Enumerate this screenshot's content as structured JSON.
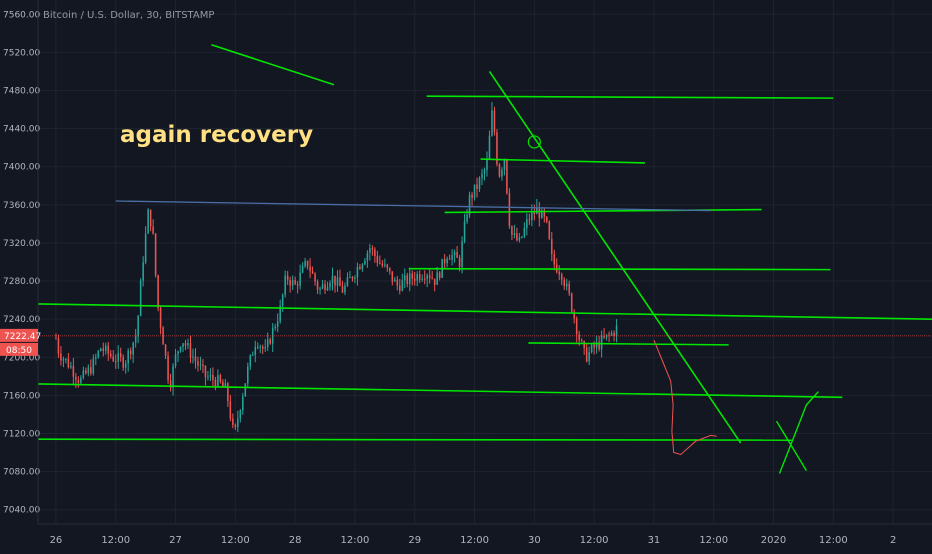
{
  "chart_data": {
    "type": "candlestick",
    "title": "Bitcoin / U.S. Dollar, 30, BITSTAMP",
    "annotation": "again recovery",
    "ylim": [
      7025,
      7575
    ],
    "y_ticks": [
      7040,
      7080,
      7120,
      7160,
      7200,
      7240,
      7280,
      7320,
      7360,
      7400,
      7440,
      7480,
      7520,
      7560
    ],
    "y_tick_labels": [
      "7040.00",
      "7080.00",
      "7120.00",
      "7160.00",
      "7200.00",
      "7240.00",
      "7280.00",
      "7320.00",
      "7360.00",
      "7400.00",
      "7440.00",
      "7480.00",
      "7520.00",
      "7560.00"
    ],
    "x_ticks": [
      "26",
      "12:00",
      "27",
      "12:00",
      "28",
      "12:00",
      "29",
      "12:00",
      "30",
      "12:00",
      "31",
      "12:00",
      "2020",
      "12:00",
      "2"
    ],
    "x_tick_pos": [
      0,
      1,
      2,
      3,
      4,
      5,
      6,
      7,
      8,
      9,
      10,
      11,
      12,
      13,
      14
    ],
    "x_range": [
      -0.3,
      14.65
    ],
    "last_price": 7222.47,
    "last_price_label": "7222.47",
    "countdown_label": "08:50",
    "colors": {
      "up": "#26a69a",
      "down": "#ef5350",
      "trendline": "#00e600",
      "blue_line": "#4a6fa5",
      "background": "#131722",
      "grid": "#1f2330"
    },
    "anchors": [
      [
        0,
        7220
      ],
      [
        0.05,
        7205
      ],
      [
        0.25,
        7190
      ],
      [
        0.4,
        7175
      ],
      [
        0.6,
        7190
      ],
      [
        0.75,
        7210
      ],
      [
        0.95,
        7200
      ],
      [
        1.15,
        7195
      ],
      [
        1.35,
        7225
      ],
      [
        1.45,
        7300
      ],
      [
        1.55,
        7355
      ],
      [
        1.62,
        7330
      ],
      [
        1.7,
        7255
      ],
      [
        1.8,
        7215
      ],
      [
        1.9,
        7170
      ],
      [
        2.0,
        7200
      ],
      [
        2.1,
        7220
      ],
      [
        2.3,
        7200
      ],
      [
        2.5,
        7180
      ],
      [
        2.7,
        7175
      ],
      [
        2.85,
        7165
      ],
      [
        2.98,
        7115
      ],
      [
        3.05,
        7140
      ],
      [
        3.2,
        7185
      ],
      [
        3.35,
        7220
      ],
      [
        3.5,
        7205
      ],
      [
        3.75,
        7250
      ],
      [
        3.85,
        7285
      ],
      [
        4.0,
        7275
      ],
      [
        4.2,
        7300
      ],
      [
        4.4,
        7270
      ],
      [
        4.6,
        7285
      ],
      [
        4.8,
        7270
      ],
      [
        5.0,
        7290
      ],
      [
        5.25,
        7315
      ],
      [
        5.4,
        7300
      ],
      [
        5.55,
        7290
      ],
      [
        5.7,
        7275
      ],
      [
        6.0,
        7285
      ],
      [
        6.2,
        7290
      ],
      [
        6.35,
        7280
      ],
      [
        6.55,
        7310
      ],
      [
        6.75,
        7300
      ],
      [
        6.9,
        7365
      ],
      [
        7.05,
        7380
      ],
      [
        7.2,
        7400
      ],
      [
        7.3,
        7460
      ],
      [
        7.4,
        7390
      ],
      [
        7.5,
        7410
      ],
      [
        7.6,
        7330
      ],
      [
        7.75,
        7320
      ],
      [
        7.9,
        7345
      ],
      [
        8.05,
        7355
      ],
      [
        8.2,
        7340
      ],
      [
        8.3,
        7300
      ],
      [
        8.45,
        7290
      ],
      [
        8.6,
        7260
      ],
      [
        8.75,
        7220
      ],
      [
        8.85,
        7200
      ],
      [
        9.0,
        7210
      ],
      [
        9.1,
        7215
      ],
      [
        9.3,
        7225
      ],
      [
        9.4,
        7232
      ]
    ],
    "trendlines": [
      {
        "color": "green",
        "width": 1.6,
        "points": [
          [
            -0.3,
            7256
          ],
          [
            14.65,
            7240
          ]
        ]
      },
      {
        "color": "green",
        "width": 1.6,
        "points": [
          [
            -0.3,
            7172
          ],
          [
            13.15,
            7158
          ]
        ]
      },
      {
        "color": "green",
        "width": 1.6,
        "points": [
          [
            -0.3,
            7114
          ],
          [
            12.3,
            7113
          ]
        ]
      },
      {
        "color": "green",
        "width": 1.6,
        "points": [
          [
            2.6,
            7528
          ],
          [
            4.65,
            7486
          ]
        ]
      },
      {
        "color": "green",
        "width": 1.6,
        "points": [
          [
            6.2,
            7474
          ],
          [
            13.0,
            7472
          ]
        ]
      },
      {
        "color": "green",
        "width": 1.6,
        "points": [
          [
            7.1,
            7408
          ],
          [
            9.85,
            7404
          ]
        ]
      },
      {
        "color": "green",
        "width": 1.6,
        "points": [
          [
            6.5,
            7352
          ],
          [
            11.8,
            7355
          ]
        ]
      },
      {
        "color": "green",
        "width": 1.6,
        "points": [
          [
            5.9,
            7293
          ],
          [
            12.95,
            7292
          ]
        ]
      },
      {
        "color": "green",
        "width": 1.6,
        "points": [
          [
            7.9,
            7215
          ],
          [
            11.25,
            7213
          ]
        ]
      },
      {
        "color": "green",
        "width": 1.6,
        "points": [
          [
            7.25,
            7500
          ],
          [
            11.45,
            7110
          ]
        ]
      },
      {
        "color": "blue",
        "width": 1.3,
        "points": [
          [
            1.0,
            7364
          ],
          [
            10.95,
            7354
          ]
        ]
      }
    ],
    "x_marks": [
      {
        "color": "green",
        "points": [
          [
            12.05,
            7133
          ],
          [
            12.55,
            7081
          ]
        ]
      },
      {
        "color": "green",
        "points": [
          [
            12.1,
            7078
          ],
          [
            12.3,
            7110
          ],
          [
            12.55,
            7150
          ],
          [
            12.75,
            7164
          ]
        ]
      }
    ],
    "projection": {
      "color": "#ef5350",
      "points": [
        [
          10.0,
          7218
        ],
        [
          10.15,
          7195
        ],
        [
          10.28,
          7175
        ],
        [
          10.32,
          7150
        ],
        [
          10.3,
          7122
        ],
        [
          10.33,
          7100
        ],
        [
          10.45,
          7098
        ],
        [
          10.7,
          7112
        ],
        [
          10.95,
          7118
        ],
        [
          11.05,
          7117
        ]
      ]
    },
    "circle_mark": {
      "x": 8.0,
      "y": 7426
    }
  }
}
